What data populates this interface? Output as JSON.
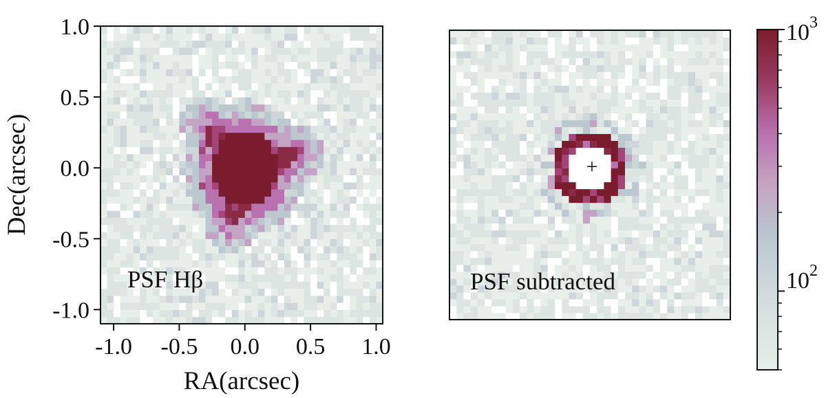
{
  "colors": {
    "background": "#ffffff",
    "cmap_low": "#e6ece7",
    "cmap_mid_blue": "#bcc9d0",
    "cmap_mid_pink": "#b86fae",
    "cmap_high": "#7b1c2e",
    "axis": "#111111"
  },
  "chart_data": [
    {
      "type": "heatmap",
      "panel": "left",
      "annotation": "PSF Hβ",
      "xlabel": "RA(arcsec)",
      "ylabel": "Dec(arcsec)",
      "xlim": [
        -1.1,
        1.05
      ],
      "ylim": [
        -1.1,
        1.0
      ],
      "xticks": [
        -1.0,
        -0.5,
        0.0,
        0.5,
        1.0
      ],
      "xtick_labels": [
        "-1.0",
        "-0.5",
        "0.0",
        "0.5",
        "1.0"
      ],
      "yticks": [
        1.0,
        0.5,
        0.0,
        -0.5,
        -1.0
      ],
      "ytick_labels": [
        "1.0",
        "0.5",
        "0.0",
        "-0.5",
        "-1.0"
      ],
      "structure": "six-pointed star-shaped PSF centred at (0, 0); saturated core radius ~0.25 arcsec, spikes to ~0.55 arcsec",
      "peak_center": [
        0.0,
        0.0
      ]
    },
    {
      "type": "heatmap",
      "panel": "right",
      "annotation": "PSF subtracted",
      "xlim": [
        -1.0,
        1.0
      ],
      "ylim": [
        -1.1,
        1.0
      ],
      "structure": "ring of residual emission with radius ~0.22 arcsec around a central cross marker at (0, 0)",
      "marker": "+",
      "marker_position": [
        0.0,
        0.0
      ]
    },
    {
      "type": "colorbar",
      "scale": "log",
      "range": [
        50,
        1000
      ],
      "major_ticks": [
        100,
        1000
      ],
      "major_tick_labels": [
        {
          "base": "10",
          "exp": "2"
        },
        {
          "base": "10",
          "exp": "3"
        }
      ]
    }
  ]
}
